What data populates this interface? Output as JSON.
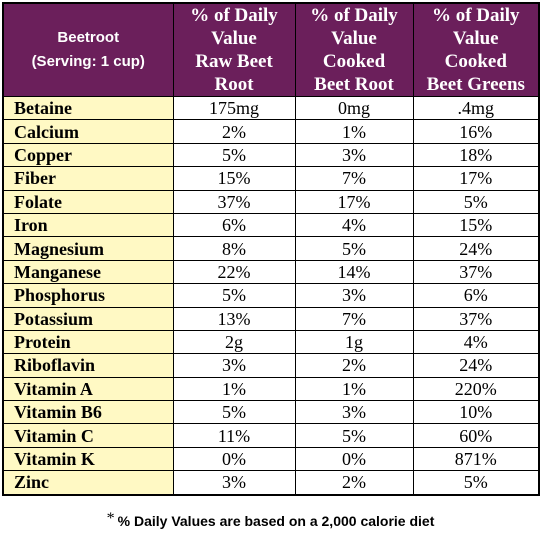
{
  "table": {
    "header": {
      "col0": [
        "Beetroot",
        "(Serving: 1 cup)"
      ],
      "col1": [
        "% of Daily",
        "Value",
        "Raw Beet",
        "Root"
      ],
      "col2": [
        "% of Daily",
        "Value",
        "Cooked",
        "Beet Root"
      ],
      "col3": [
        "% of Daily",
        "Value",
        "Cooked",
        "Beet Greens"
      ]
    },
    "rows": [
      {
        "name": "Betaine",
        "raw": "175mg",
        "cooked_root": "0mg",
        "greens": ".4mg"
      },
      {
        "name": "Calcium",
        "raw": "2%",
        "cooked_root": "1%",
        "greens": "16%"
      },
      {
        "name": "Copper",
        "raw": "5%",
        "cooked_root": "3%",
        "greens": "18%"
      },
      {
        "name": "Fiber",
        "raw": "15%",
        "cooked_root": "7%",
        "greens": "17%"
      },
      {
        "name": "Folate",
        "raw": "37%",
        "cooked_root": "17%",
        "greens": "5%"
      },
      {
        "name": "Iron",
        "raw": "6%",
        "cooked_root": "4%",
        "greens": "15%"
      },
      {
        "name": "Magnesium",
        "raw": "8%",
        "cooked_root": "5%",
        "greens": "24%"
      },
      {
        "name": "Manganese",
        "raw": "22%",
        "cooked_root": "14%",
        "greens": "37%"
      },
      {
        "name": "Phosphorus",
        "raw": "5%",
        "cooked_root": "3%",
        "greens": "6%"
      },
      {
        "name": "Potassium",
        "raw": "13%",
        "cooked_root": "7%",
        "greens": "37%"
      },
      {
        "name": "Protein",
        "raw": "2g",
        "cooked_root": "1g",
        "greens": "4%"
      },
      {
        "name": "Riboflavin",
        "raw": "3%",
        "cooked_root": "2%",
        "greens": "24%"
      },
      {
        "name": "Vitamin A",
        "raw": "1%",
        "cooked_root": "1%",
        "greens": "220%"
      },
      {
        "name": "Vitamin B6",
        "raw": "5%",
        "cooked_root": "3%",
        "greens": "10%"
      },
      {
        "name": "Vitamin C",
        "raw": "11%",
        "cooked_root": "5%",
        "greens": "60%"
      },
      {
        "name": "Vitamin K",
        "raw": "0%",
        "cooked_root": "0%",
        "greens": "871%"
      },
      {
        "name": "Zinc",
        "raw": "3%",
        "cooked_root": "2%",
        "greens": "5%"
      }
    ]
  },
  "footnote": {
    "star": "*",
    "text": "% Daily Values are based on a 2,000 calorie diet"
  },
  "colors": {
    "header_bg": "#6b1f5b",
    "header_text": "#ffffff",
    "name_cell_bg": "#fff9c4",
    "value_cell_bg": "#ffffff",
    "border": "#000000"
  }
}
